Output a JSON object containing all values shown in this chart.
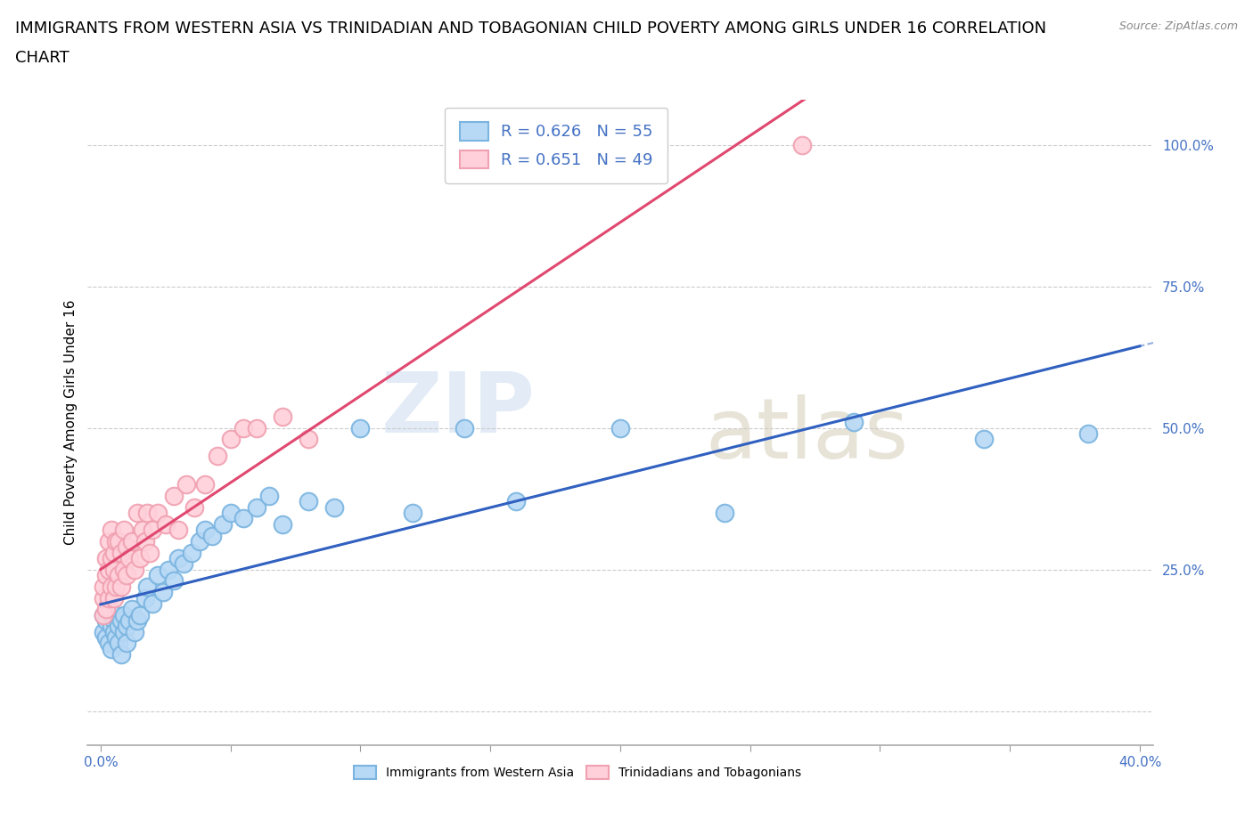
{
  "title_line1": "IMMIGRANTS FROM WESTERN ASIA VS TRINIDADIAN AND TOBAGONIAN CHILD POVERTY AMONG GIRLS UNDER 16 CORRELATION",
  "title_line2": "CHART",
  "source": "Source: ZipAtlas.com",
  "ylabel": "Child Poverty Among Girls Under 16",
  "blue_color": "#7ab4e0",
  "blue_fill": "#b8d9f5",
  "pink_color": "#f0a0b0",
  "pink_fill": "#ffd0da",
  "trend_blue_color": "#3060c0",
  "trend_pink_color": "#e04870",
  "R_blue": 0.626,
  "N_blue": 55,
  "R_pink": 0.651,
  "N_pink": 49,
  "blue_scatter_x": [
    0.001,
    0.001,
    0.002,
    0.002,
    0.003,
    0.003,
    0.004,
    0.004,
    0.005,
    0.005,
    0.006,
    0.006,
    0.007,
    0.007,
    0.008,
    0.008,
    0.009,
    0.009,
    0.01,
    0.01,
    0.011,
    0.012,
    0.013,
    0.014,
    0.015,
    0.017,
    0.018,
    0.02,
    0.022,
    0.024,
    0.026,
    0.028,
    0.03,
    0.032,
    0.035,
    0.038,
    0.04,
    0.043,
    0.047,
    0.05,
    0.055,
    0.06,
    0.065,
    0.07,
    0.08,
    0.09,
    0.1,
    0.12,
    0.14,
    0.16,
    0.2,
    0.24,
    0.29,
    0.34,
    0.38
  ],
  "blue_scatter_y": [
    0.17,
    0.14,
    0.16,
    0.13,
    0.18,
    0.12,
    0.15,
    0.11,
    0.16,
    0.14,
    0.17,
    0.13,
    0.15,
    0.12,
    0.16,
    0.1,
    0.14,
    0.17,
    0.15,
    0.12,
    0.16,
    0.18,
    0.14,
    0.16,
    0.17,
    0.2,
    0.22,
    0.19,
    0.24,
    0.21,
    0.25,
    0.23,
    0.27,
    0.26,
    0.28,
    0.3,
    0.32,
    0.31,
    0.33,
    0.35,
    0.34,
    0.36,
    0.38,
    0.33,
    0.37,
    0.36,
    0.5,
    0.35,
    0.5,
    0.37,
    0.5,
    0.35,
    0.51,
    0.48,
    0.49
  ],
  "pink_scatter_x": [
    0.001,
    0.001,
    0.001,
    0.002,
    0.002,
    0.002,
    0.003,
    0.003,
    0.003,
    0.004,
    0.004,
    0.004,
    0.005,
    0.005,
    0.005,
    0.006,
    0.006,
    0.007,
    0.007,
    0.008,
    0.008,
    0.009,
    0.009,
    0.01,
    0.01,
    0.011,
    0.012,
    0.013,
    0.014,
    0.015,
    0.016,
    0.017,
    0.018,
    0.019,
    0.02,
    0.022,
    0.025,
    0.028,
    0.03,
    0.033,
    0.036,
    0.04,
    0.045,
    0.05,
    0.055,
    0.06,
    0.07,
    0.08,
    0.27
  ],
  "pink_scatter_y": [
    0.17,
    0.2,
    0.22,
    0.18,
    0.24,
    0.27,
    0.2,
    0.25,
    0.3,
    0.22,
    0.27,
    0.32,
    0.2,
    0.25,
    0.28,
    0.22,
    0.3,
    0.24,
    0.3,
    0.22,
    0.28,
    0.25,
    0.32,
    0.24,
    0.29,
    0.27,
    0.3,
    0.25,
    0.35,
    0.27,
    0.32,
    0.3,
    0.35,
    0.28,
    0.32,
    0.35,
    0.33,
    0.38,
    0.32,
    0.4,
    0.36,
    0.4,
    0.45,
    0.48,
    0.5,
    0.5,
    0.52,
    0.48,
    1.0
  ],
  "watermark_zip": "ZIP",
  "watermark_atlas": "atlas",
  "background_color": "#ffffff",
  "grid_color": "#cccccc",
  "title_fontsize": 13,
  "axis_label_fontsize": 11,
  "tick_fontsize": 11,
  "legend_fontsize": 13
}
